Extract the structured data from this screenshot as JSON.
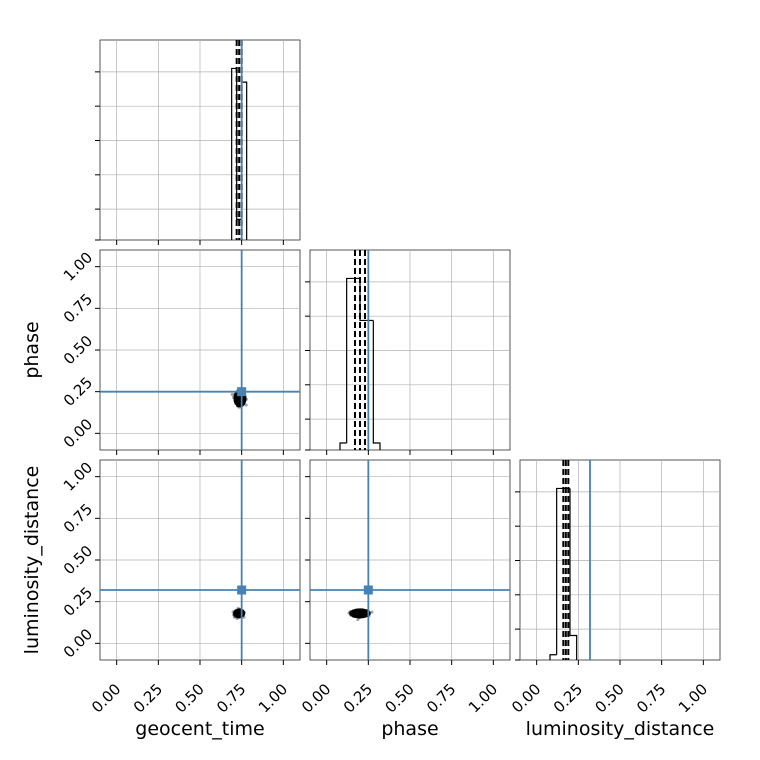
{
  "colors": {
    "truth": "#4682b4",
    "histogram": "#000000",
    "grid": "#b0b0b0",
    "frame": "#444444"
  },
  "chart_data": {
    "type": "corner",
    "parameters": [
      "geocent_time",
      "phase",
      "luminosity_distance"
    ],
    "axis_range": [
      -0.1,
      1.1
    ],
    "ticks": [
      0.0,
      0.25,
      0.5,
      0.75,
      1.0
    ],
    "tick_labels": [
      "0.00",
      "0.25",
      "0.50",
      "0.75",
      "1.00"
    ],
    "grid": true,
    "truths": {
      "geocent_time": 0.75,
      "phase": 0.25,
      "luminosity_distance": 0.32
    },
    "quantiles": {
      "geocent_time": [
        0.72,
        0.735,
        0.75
      ],
      "phase": [
        0.17,
        0.2,
        0.23
      ],
      "luminosity_distance": [
        0.16,
        0.175,
        0.19
      ]
    },
    "histograms": {
      "geocent_time": {
        "edges": [
          0.69,
          0.72,
          0.75,
          0.78
        ],
        "counts": [
          1.0,
          0.12,
          0.92
        ]
      },
      "phase": {
        "edges": [
          0.08,
          0.12,
          0.16,
          0.2,
          0.24,
          0.28,
          0.32
        ],
        "counts": [
          0.04,
          0.98,
          0.98,
          0.74,
          0.74,
          0.04
        ]
      },
      "luminosity_distance": {
        "edges": [
          0.08,
          0.12,
          0.16,
          0.2,
          0.24
        ],
        "counts": [
          0.03,
          0.98,
          0.98,
          0.14
        ]
      }
    },
    "scatter": [
      {
        "x": "geocent_time",
        "y": "phase",
        "center": [
          0.74,
          0.21
        ],
        "spread": [
          0.03,
          0.045
        ],
        "n": 260
      },
      {
        "x": "geocent_time",
        "y": "luminosity_distance",
        "center": [
          0.735,
          0.18
        ],
        "spread": [
          0.028,
          0.02
        ],
        "n": 220
      },
      {
        "x": "phase",
        "y": "luminosity_distance",
        "center": [
          0.2,
          0.18
        ],
        "spread": [
          0.05,
          0.02
        ],
        "n": 260
      }
    ]
  }
}
